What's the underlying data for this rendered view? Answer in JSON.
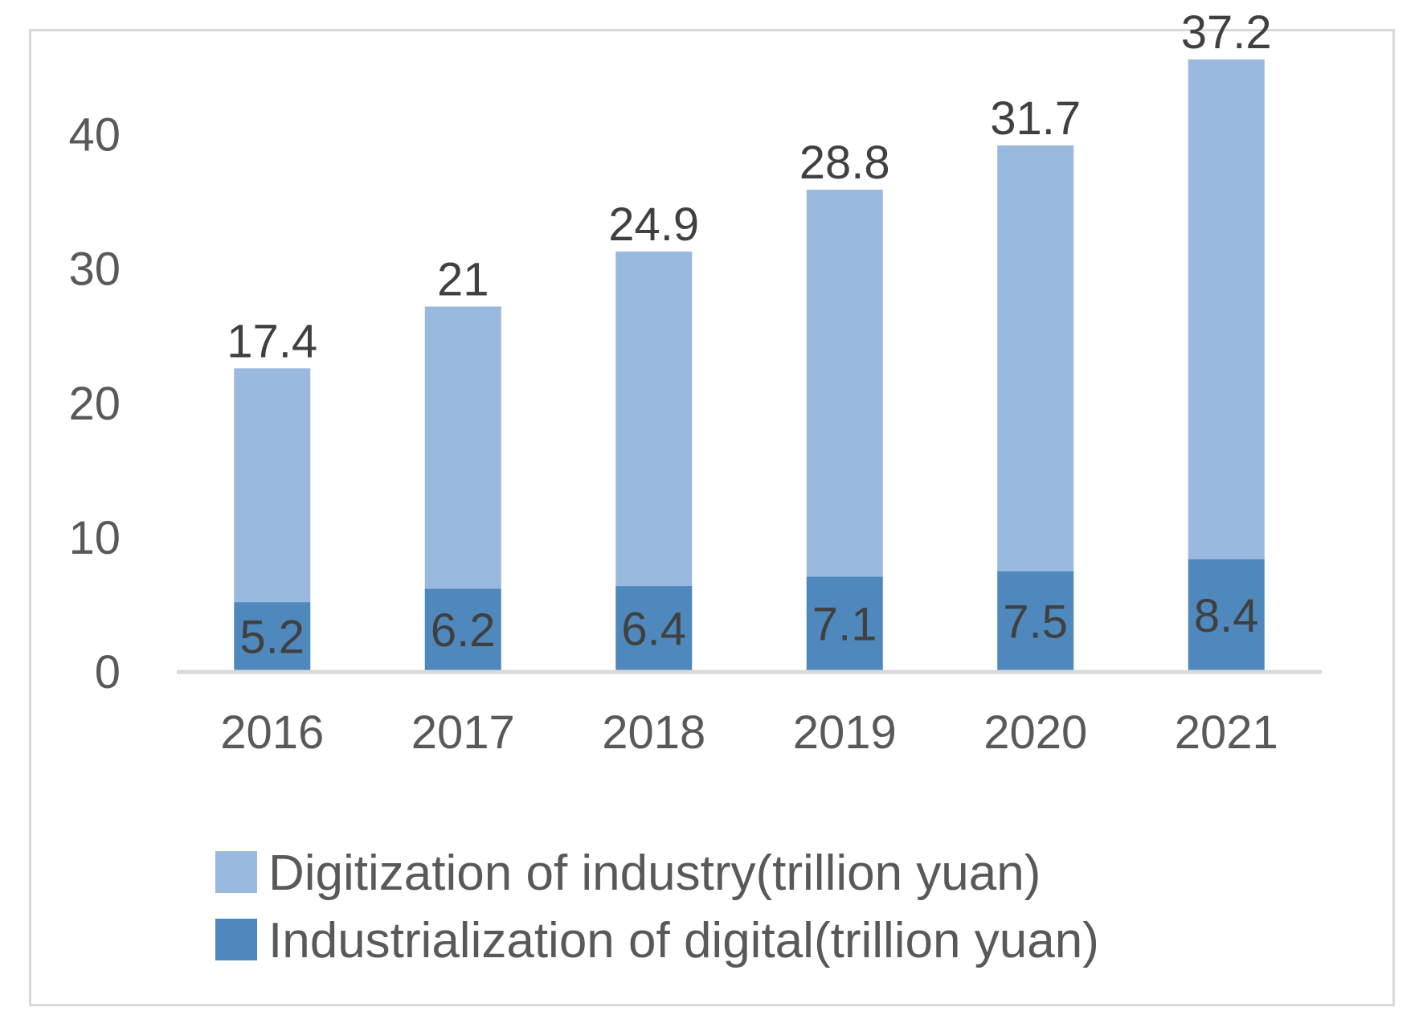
{
  "chart_data": {
    "type": "bar",
    "stacked": true,
    "title": "",
    "xlabel": "",
    "ylabel": "",
    "categories": [
      "2016",
      "2017",
      "2018",
      "2019",
      "2020",
      "2021"
    ],
    "series": [
      {
        "name": "Industrialization of digital(trillion yuan)",
        "color": "#4f88bc",
        "values": [
          5.2,
          6.2,
          6.4,
          7.1,
          7.5,
          8.4
        ],
        "labels": [
          "5.2",
          "6.2",
          "6.4",
          "7.1",
          "7.5",
          "8.4"
        ]
      },
      {
        "name": "Digitization of industry(trillion yuan)",
        "color": "#99b9de",
        "values": [
          17.4,
          21,
          24.9,
          28.8,
          31.7,
          37.2
        ],
        "labels": [
          "17.4",
          "21",
          "24.9",
          "28.8",
          "31.7",
          "37.2"
        ]
      }
    ],
    "ylim": [
      0,
      45
    ],
    "yticks": [
      "0",
      "10",
      "20",
      "30",
      "40"
    ],
    "ytick_values": [
      0,
      10,
      20,
      30,
      40
    ],
    "grid": false,
    "legend_position": "bottom",
    "legend_order": [
      1,
      0
    ]
  }
}
